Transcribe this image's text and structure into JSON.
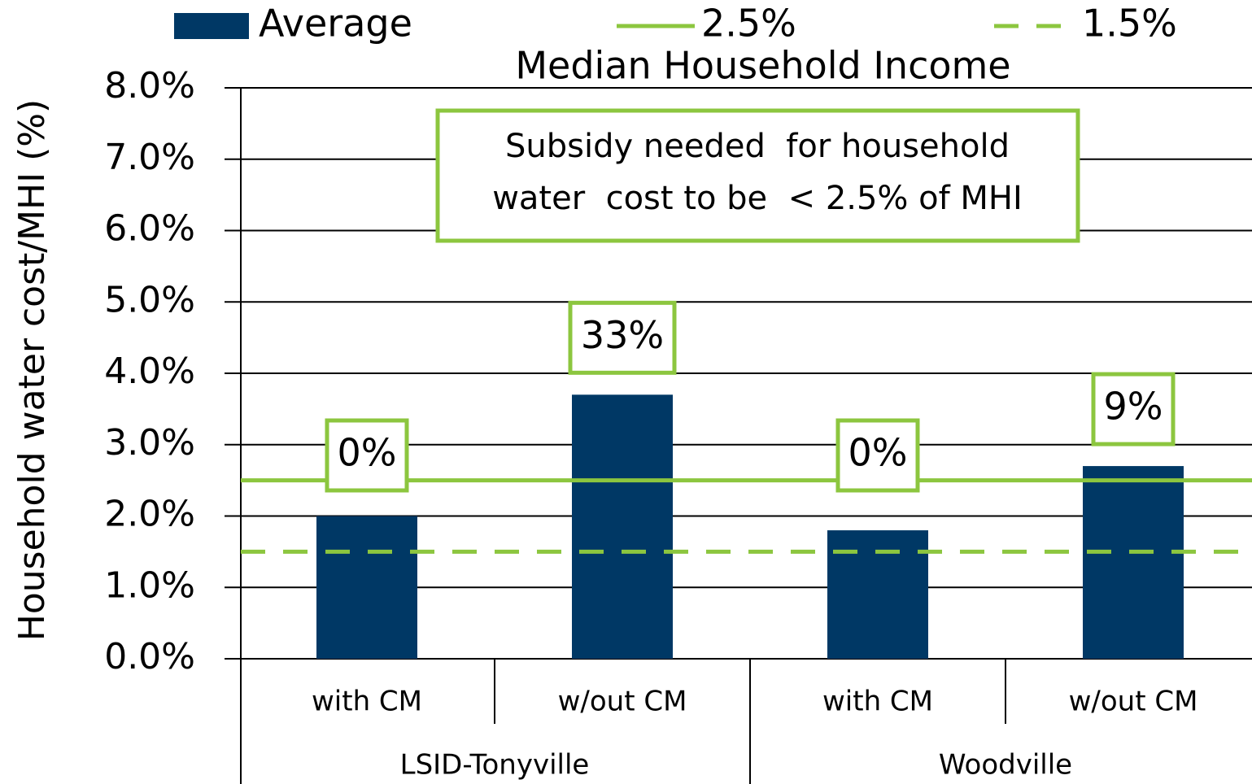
{
  "chart_data": {
    "type": "bar",
    "title": "Median Household Income",
    "y_label": "Household water cost/MHI (%)",
    "groups": [
      {
        "name": "LSID-Tonyville",
        "categories": [
          "with CM",
          "w/out CM"
        ]
      },
      {
        "name": "Woodville",
        "categories": [
          "with CM",
          "w/out CM"
        ]
      }
    ],
    "series": [
      {
        "name": "Average",
        "color": "#003865",
        "values": [
          2.0,
          3.7,
          1.8,
          2.7
        ]
      }
    ],
    "reference_lines": [
      {
        "name": "2.5%",
        "value": 2.5,
        "color": "#8cc63f",
        "dashed": false
      },
      {
        "name": "1.5%",
        "value": 1.5,
        "color": "#8cc63f",
        "dashed": true
      }
    ],
    "annotations": [
      "0%",
      "33%",
      "0%",
      "9%"
    ],
    "note_lines": [
      "Subsidy needed  for household",
      "water  cost to be  < 2.5% of MHI"
    ],
    "ylim": [
      0,
      8
    ],
    "yticks": [
      {
        "value": 0,
        "label": "0.0%"
      },
      {
        "value": 1,
        "label": "1.0%"
      },
      {
        "value": 2,
        "label": "2.0%"
      },
      {
        "value": 3,
        "label": "3.0%"
      },
      {
        "value": 4,
        "label": "4.0%"
      },
      {
        "value": 5,
        "label": "5.0%"
      },
      {
        "value": 6,
        "label": "6.0%"
      },
      {
        "value": 7,
        "label": "7.0%"
      },
      {
        "value": 8,
        "label": "8.0%"
      }
    ],
    "grid": true
  }
}
